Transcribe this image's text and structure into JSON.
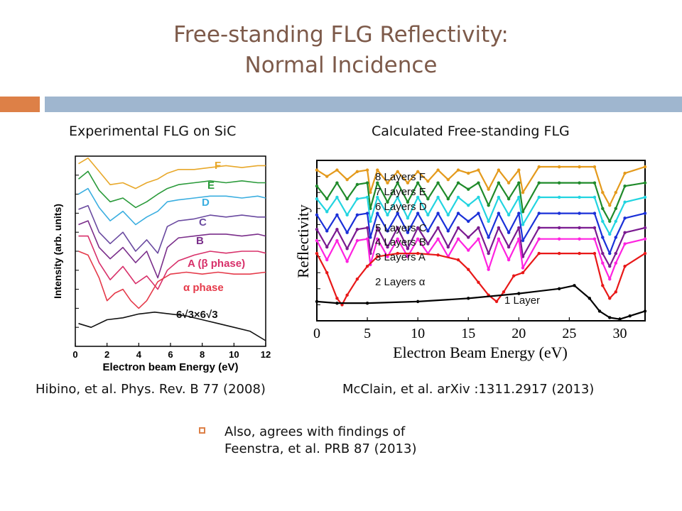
{
  "slide": {
    "title_line1": "Free-standing FLG Reflectivity:",
    "title_line2": "Normal Incidence",
    "left_heading": "Experimental FLG on SiC",
    "right_heading": "Calculated Free-standing FLG",
    "left_citation": "Hibino, et al. Phys. Rev. B 77 (2008)",
    "right_citation": "McClain, et al. arXiv :1311.2917 (2013)",
    "bullet_line1": "Also, agrees with findings of",
    "bullet_line2": "Feenstra, et al. PRB 87 (2013)",
    "accent_color": "#dd8047",
    "bar_color": "#9fb6cf",
    "title_color": "#7d5a4a"
  },
  "chart_data": [
    {
      "type": "line",
      "xlabel": "Electron beam Energy (eV)",
      "ylabel": "Intensity (arb. units)",
      "xlim": [
        0,
        12
      ],
      "x_ticks": [
        "0",
        "2",
        "4",
        "6",
        "8",
        "10",
        "12"
      ],
      "y_tick_labels": false,
      "series": [
        {
          "name": "F",
          "color": "#e8a82a",
          "x": [
            0.2,
            0.8,
            1.5,
            2.2,
            3,
            3.8,
            4.5,
            5.2,
            5.8,
            6.5,
            7.5,
            8.5,
            9.5,
            10.5,
            11.5,
            12
          ],
          "y": [
            0.96,
            0.99,
            0.92,
            0.85,
            0.86,
            0.83,
            0.86,
            0.88,
            0.91,
            0.93,
            0.93,
            0.94,
            0.95,
            0.94,
            0.95,
            0.95
          ]
        },
        {
          "name": "E",
          "color": "#2a9a3a",
          "x": [
            0.2,
            0.8,
            1.5,
            2.2,
            3,
            3.8,
            4.5,
            5.2,
            5.8,
            6.5,
            7.5,
            8.5,
            9.5,
            10.5,
            11.5,
            12
          ],
          "y": [
            0.88,
            0.92,
            0.82,
            0.76,
            0.78,
            0.73,
            0.76,
            0.8,
            0.83,
            0.85,
            0.86,
            0.87,
            0.86,
            0.87,
            0.86,
            0.86
          ]
        },
        {
          "name": "D",
          "color": "#3aaee0",
          "x": [
            0.2,
            0.8,
            1.5,
            2.2,
            3,
            3.8,
            4.5,
            5.2,
            5.8,
            6.5,
            7.5,
            8.5,
            9.5,
            10.5,
            11.5,
            12
          ],
          "y": [
            0.8,
            0.83,
            0.73,
            0.66,
            0.71,
            0.64,
            0.68,
            0.71,
            0.76,
            0.77,
            0.78,
            0.79,
            0.79,
            0.78,
            0.79,
            0.78
          ]
        },
        {
          "name": "C",
          "color": "#6a4aa0",
          "x": [
            0.2,
            0.8,
            1.5,
            2.2,
            3,
            3.8,
            4.5,
            5.2,
            5.8,
            6.5,
            7.5,
            8.5,
            9.5,
            10.5,
            11.5,
            12
          ],
          "y": [
            0.72,
            0.74,
            0.6,
            0.54,
            0.6,
            0.5,
            0.56,
            0.49,
            0.63,
            0.66,
            0.67,
            0.69,
            0.68,
            0.69,
            0.68,
            0.68
          ]
        },
        {
          "name": "B",
          "color": "#7a2e8a",
          "x": [
            0.2,
            0.8,
            1.5,
            2.2,
            3,
            3.8,
            4.5,
            5.2,
            5.8,
            6.5,
            7.5,
            8.5,
            9.5,
            10.5,
            11.5,
            12
          ],
          "y": [
            0.64,
            0.66,
            0.52,
            0.46,
            0.52,
            0.44,
            0.5,
            0.36,
            0.52,
            0.57,
            0.58,
            0.59,
            0.59,
            0.58,
            0.59,
            0.58
          ]
        },
        {
          "name": "A (β phase)",
          "color": "#d8306a",
          "x": [
            0.2,
            0.8,
            1.5,
            2.2,
            3,
            3.8,
            4.5,
            5.2,
            5.8,
            6.5,
            7.5,
            8.5,
            9.5,
            10.5,
            11.5,
            12
          ],
          "y": [
            0.58,
            0.58,
            0.44,
            0.35,
            0.42,
            0.33,
            0.37,
            0.3,
            0.4,
            0.45,
            0.48,
            0.5,
            0.49,
            0.5,
            0.5,
            0.49
          ]
        },
        {
          "name": "α phase",
          "color": "#e53a4a",
          "x": [
            0.2,
            0.8,
            1.5,
            2,
            2.5,
            3,
            3.5,
            4,
            4.5,
            5.2,
            6,
            7,
            8,
            9,
            10,
            11,
            12
          ],
          "y": [
            0.5,
            0.48,
            0.36,
            0.24,
            0.28,
            0.3,
            0.24,
            0.2,
            0.24,
            0.34,
            0.38,
            0.39,
            0.38,
            0.39,
            0.38,
            0.38,
            0.39
          ]
        },
        {
          "name": "6√3×6√3",
          "color": "#111111",
          "x": [
            0.2,
            1,
            2,
            3,
            4,
            5,
            6,
            7,
            8,
            9,
            10,
            11,
            12
          ],
          "y": [
            0.12,
            0.1,
            0.14,
            0.15,
            0.17,
            0.18,
            0.17,
            0.16,
            0.14,
            0.12,
            0.1,
            0.08,
            0.03
          ]
        }
      ],
      "series_labels": [
        "F",
        "E",
        "D",
        "C",
        "B",
        "A (β phase)",
        "α phase",
        "6√3×6√3"
      ]
    },
    {
      "type": "line",
      "xlabel": "Electron Beam Energy (eV)",
      "ylabel": "Reflectivity",
      "xlim": [
        0,
        32.5
      ],
      "x_ticks": [
        "0",
        "5",
        "10",
        "15",
        "20",
        "25",
        "30"
      ],
      "y_tick_labels": false,
      "series": [
        {
          "name": "8 Layers F",
          "color": "#e49a1c",
          "x": [
            0,
            1,
            2,
            3,
            4,
            5,
            5.3,
            6,
            7,
            8,
            9,
            10,
            11,
            12,
            13,
            14,
            15,
            16,
            17,
            18,
            19,
            20,
            20.4,
            22,
            24,
            26,
            27.5,
            28.3,
            29,
            29.6,
            30.5,
            32.5
          ],
          "y": [
            0.94,
            0.9,
            0.94,
            0.88,
            0.93,
            0.94,
            0.8,
            0.94,
            0.86,
            0.93,
            0.86,
            0.93,
            0.87,
            0.94,
            0.88,
            0.94,
            0.92,
            0.94,
            0.82,
            0.94,
            0.86,
            0.94,
            0.8,
            0.96,
            0.96,
            0.96,
            0.96,
            0.8,
            0.72,
            0.8,
            0.92,
            0.96
          ]
        },
        {
          "name": "7 Layers E",
          "color": "#1f8a2a",
          "x": [
            0,
            1,
            2,
            3,
            4,
            5,
            5.3,
            6,
            7,
            8,
            9,
            10,
            11,
            12,
            13,
            14,
            15,
            16,
            17,
            18,
            19,
            20,
            20.4,
            22,
            24,
            26,
            27.5,
            28.3,
            29,
            29.6,
            30.5,
            32.5
          ],
          "y": [
            0.84,
            0.76,
            0.86,
            0.76,
            0.85,
            0.86,
            0.7,
            0.86,
            0.74,
            0.86,
            0.74,
            0.86,
            0.76,
            0.86,
            0.76,
            0.86,
            0.82,
            0.86,
            0.72,
            0.86,
            0.76,
            0.86,
            0.68,
            0.86,
            0.86,
            0.86,
            0.86,
            0.7,
            0.62,
            0.7,
            0.84,
            0.86
          ]
        },
        {
          "name": "6 Layers D",
          "color": "#22d4e0",
          "x": [
            0,
            1,
            2,
            3,
            4,
            5,
            5.3,
            6,
            7,
            8,
            9,
            10,
            11,
            12,
            13,
            14,
            15,
            16,
            17,
            18,
            19,
            20,
            20.4,
            22,
            24,
            26,
            27.5,
            28.3,
            29,
            29.6,
            30.5,
            32.5
          ],
          "y": [
            0.76,
            0.68,
            0.77,
            0.66,
            0.76,
            0.77,
            0.62,
            0.77,
            0.66,
            0.77,
            0.64,
            0.77,
            0.66,
            0.77,
            0.66,
            0.77,
            0.72,
            0.77,
            0.62,
            0.77,
            0.66,
            0.77,
            0.6,
            0.77,
            0.77,
            0.77,
            0.77,
            0.62,
            0.54,
            0.62,
            0.74,
            0.77
          ]
        },
        {
          "name": "5 Layers C",
          "color": "#1a30d8",
          "x": [
            0,
            1,
            2,
            3,
            4,
            5,
            5.3,
            6,
            7,
            8,
            9,
            10,
            11,
            12,
            13,
            14,
            15,
            16,
            17,
            18,
            19,
            20,
            20.4,
            22,
            24,
            26,
            27.5,
            28.3,
            29,
            29.6,
            30.5,
            32.5
          ],
          "y": [
            0.66,
            0.56,
            0.66,
            0.55,
            0.66,
            0.67,
            0.52,
            0.67,
            0.56,
            0.67,
            0.55,
            0.67,
            0.56,
            0.67,
            0.56,
            0.67,
            0.62,
            0.67,
            0.52,
            0.67,
            0.55,
            0.67,
            0.5,
            0.67,
            0.67,
            0.67,
            0.67,
            0.52,
            0.42,
            0.52,
            0.64,
            0.67
          ]
        },
        {
          "name": "4 Layers B",
          "color": "#7a1a90",
          "x": [
            0,
            1,
            2,
            3,
            4,
            5,
            5.3,
            6,
            7,
            8,
            9,
            10,
            11,
            12,
            13,
            14,
            15,
            16,
            17,
            18,
            19,
            20,
            20.4,
            22,
            24,
            26,
            27.5,
            28.3,
            29,
            29.6,
            30.5,
            32.5
          ],
          "y": [
            0.57,
            0.46,
            0.57,
            0.45,
            0.57,
            0.58,
            0.42,
            0.58,
            0.46,
            0.58,
            0.45,
            0.58,
            0.48,
            0.58,
            0.46,
            0.58,
            0.52,
            0.58,
            0.42,
            0.58,
            0.46,
            0.58,
            0.4,
            0.58,
            0.58,
            0.58,
            0.58,
            0.42,
            0.34,
            0.42,
            0.55,
            0.58
          ]
        },
        {
          "name": "3 Layers A",
          "color": "#ff22e0",
          "x": [
            0,
            1,
            2,
            3,
            4,
            5,
            5.3,
            6,
            7,
            8,
            9,
            10,
            11,
            12,
            13,
            14,
            15,
            16,
            17,
            18,
            19,
            20,
            20.4,
            22,
            24,
            26,
            27.5,
            28.3,
            29,
            29.6,
            30.5,
            32.5
          ],
          "y": [
            0.5,
            0.38,
            0.5,
            0.37,
            0.5,
            0.51,
            0.35,
            0.51,
            0.4,
            0.51,
            0.4,
            0.51,
            0.42,
            0.51,
            0.4,
            0.51,
            0.44,
            0.51,
            0.32,
            0.51,
            0.38,
            0.51,
            0.33,
            0.51,
            0.51,
            0.51,
            0.51,
            0.36,
            0.26,
            0.36,
            0.48,
            0.51
          ]
        },
        {
          "name": "2 Layers α",
          "color": "#e81818",
          "x": [
            0,
            1,
            2,
            2.5,
            3,
            4,
            5,
            6,
            8,
            10,
            12,
            14,
            15,
            16,
            17,
            17.8,
            18.5,
            19.5,
            20.4,
            22,
            24,
            26,
            27.5,
            28.3,
            29,
            29.6,
            30.5,
            32.5
          ],
          "y": [
            0.42,
            0.3,
            0.14,
            0.1,
            0.16,
            0.26,
            0.34,
            0.4,
            0.42,
            0.42,
            0.41,
            0.38,
            0.32,
            0.24,
            0.16,
            0.12,
            0.18,
            0.28,
            0.3,
            0.42,
            0.42,
            0.42,
            0.42,
            0.22,
            0.14,
            0.18,
            0.34,
            0.42
          ]
        },
        {
          "name": "1 Layer",
          "color": "#000000",
          "x": [
            0,
            2,
            5,
            10,
            15,
            20,
            24,
            25.5,
            27,
            28,
            29,
            30,
            31,
            32.5
          ],
          "y": [
            0.12,
            0.11,
            0.11,
            0.12,
            0.14,
            0.17,
            0.2,
            0.22,
            0.14,
            0.06,
            0.02,
            0.01,
            0.03,
            0.06
          ]
        }
      ],
      "series_labels": [
        "8 Layers F",
        "7 Layers E",
        "6 Layers D",
        "5 Layers C",
        "4 Layers B",
        "3 Layers A",
        "2 Layers α",
        "1 Layer"
      ]
    }
  ]
}
